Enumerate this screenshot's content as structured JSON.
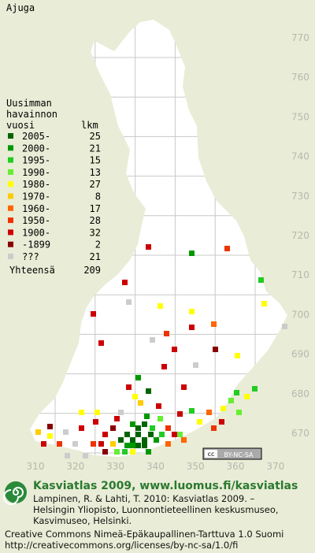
{
  "title": "Ajuga",
  "legend": {
    "header": [
      "Uusimman",
      "havainnon",
      "vuosi"
    ],
    "count_header": "lkm",
    "rows": [
      {
        "label": "2005-",
        "count": 25,
        "color": "#006400"
      },
      {
        "label": "2000-",
        "count": 21,
        "color": "#009900"
      },
      {
        "label": "1995-",
        "count": 15,
        "color": "#22cc22"
      },
      {
        "label": "1990-",
        "count": 13,
        "color": "#66ee33"
      },
      {
        "label": "1980-",
        "count": 27,
        "color": "#ffff00"
      },
      {
        "label": "1970-",
        "count": 8,
        "color": "#ffcc00"
      },
      {
        "label": "1960-",
        "count": 17,
        "color": "#ff6600"
      },
      {
        "label": "1950-",
        "count": 28,
        "color": "#ee3300"
      },
      {
        "label": "1900-",
        "count": 32,
        "color": "#cc0000"
      },
      {
        "label": "-1899",
        "count": 2,
        "color": "#880000"
      },
      {
        "label": "???",
        "count": 21,
        "color": "#cccccc"
      }
    ],
    "total_label": "Yhteensä",
    "total": 209
  },
  "grid": {
    "y_labels": [
      770,
      760,
      750,
      740,
      730,
      720,
      710,
      700,
      690,
      680,
      670
    ],
    "x_labels": [
      310,
      320,
      330,
      340,
      350,
      360,
      370
    ]
  },
  "license_badge": [
    "cc",
    "BY-NC-SA"
  ],
  "footer": {
    "brand": "Kasviatlas 2009, www.luomus.fi/kasviatlas",
    "citation": [
      "Lampinen, R. & Lahti, T. 2010: Kasviatlas 2009. –",
      "Helsingin Yliopisto, Luonnontieteellinen keskusmuseo,",
      "Kasvimuseo, Helsinki."
    ],
    "license": [
      "Creative Commons Nimeä-Epäkaupallinen-Tarttuva 1.0 Suomi",
      "http://creativecommons.org/licenses/by-nc-sa/1.0/fi"
    ]
  }
}
